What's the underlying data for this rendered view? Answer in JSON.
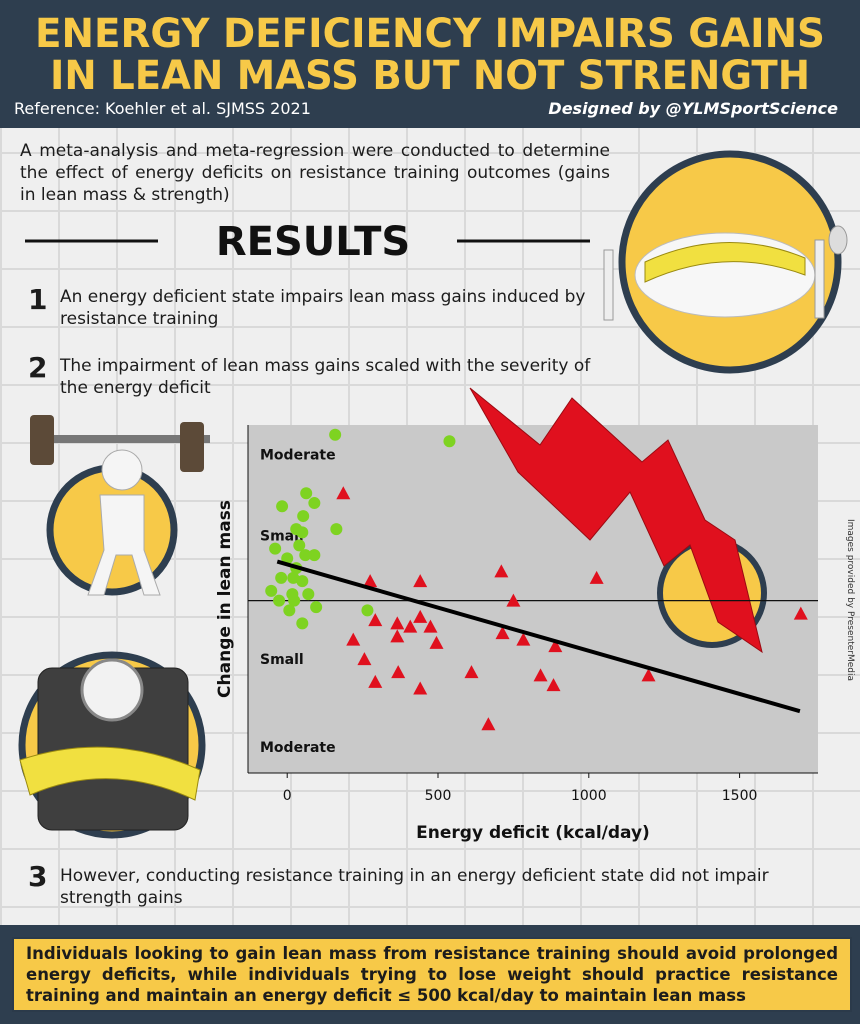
{
  "header": {
    "title": [
      "ENERGY DEFICIENCY IMPAIRS GAINS",
      "IN LEAN MASS BUT NOT STRENGTH"
    ],
    "reference": "Reference: Koehler et al. SJMSS 2021",
    "credit": "Designed by @YLMSportScience"
  },
  "intro": "A meta-analysis and meta-regression were conducted to determine the effect of energy deficits on resistance training outcomes (gains in lean mass & strength)",
  "results_heading": "RESULTS",
  "findings": [
    {
      "number": 1,
      "text": "An energy deficient state impairs lean mass gains induced by resistance training"
    },
    {
      "number": 2,
      "text": "The impairment of lean mass gains scaled with the severity of the energy deficit"
    },
    {
      "number": 3,
      "text": "However, conducting resistance training in an energy deficient state did not impair strength gains"
    }
  ],
  "conclusion": "Individuals looking to gain lean mass from resistance training should avoid prolonged energy deficits, while individuals trying to lose weight should practice resistance training and maintain an energy deficit ≤ 500 kcal/day to maintain lean mass",
  "image_credit": "Images provided by PresenterMedia",
  "chart_data": {
    "type": "scatter",
    "x_label": "Energy deficit (kcal/day)",
    "y_label": "Change in lean mass",
    "xlim": [
      -130,
      1760
    ],
    "xticks": [
      0,
      500,
      1000,
      1500
    ],
    "ylim": [
      -0.53,
      0.54
    ],
    "yticks": [
      {
        "value": 0.45,
        "label": "Moderate"
      },
      {
        "value": 0.2,
        "label": "Small"
      },
      {
        "value": -0.18,
        "label": "Small"
      },
      {
        "value": -0.45,
        "label": "Moderate"
      }
    ],
    "zero_line": true,
    "series": [
      {
        "color": "#7ed321",
        "marker": "circle",
        "x": [
          159,
          538,
          63,
          90,
          -17,
          53,
          30,
          163,
          -40,
          50,
          40,
          90,
          0,
          60,
          30,
          -20,
          20,
          50,
          -53,
          17,
          70,
          -27,
          23,
          96,
          7,
          50,
          266
        ],
        "y": [
          0.51,
          0.49,
          0.33,
          0.3,
          0.29,
          0.26,
          0.22,
          0.22,
          0.16,
          0.21,
          0.17,
          0.14,
          0.13,
          0.14,
          0.1,
          0.07,
          0.07,
          0.06,
          0.03,
          0.02,
          0.02,
          0,
          0,
          -0.02,
          -0.03,
          -0.07,
          -0.03
        ]
      },
      {
        "color": "#e0101e",
        "marker": "triangle",
        "x": [
          186,
          275,
          441,
          710,
          1026,
          750,
          1703,
          292,
          219,
          365,
          408,
          441,
          475,
          495,
          365,
          714,
          783,
          889,
          256,
          368,
          611,
          840,
          883,
          1198,
          292,
          441,
          667
        ],
        "y": [
          0.33,
          0.06,
          0.06,
          0.09,
          0.07,
          0,
          -0.04,
          -0.06,
          -0.12,
          -0.07,
          -0.08,
          -0.05,
          -0.08,
          -0.13,
          -0.11,
          -0.1,
          -0.12,
          -0.14,
          -0.18,
          -0.22,
          -0.22,
          -0.23,
          -0.26,
          -0.23,
          -0.25,
          -0.27,
          -0.38
        ]
      }
    ],
    "trend": {
      "color": "#000000",
      "x": [
        -33,
        1700
      ],
      "y": [
        0.12,
        -0.34
      ]
    }
  }
}
